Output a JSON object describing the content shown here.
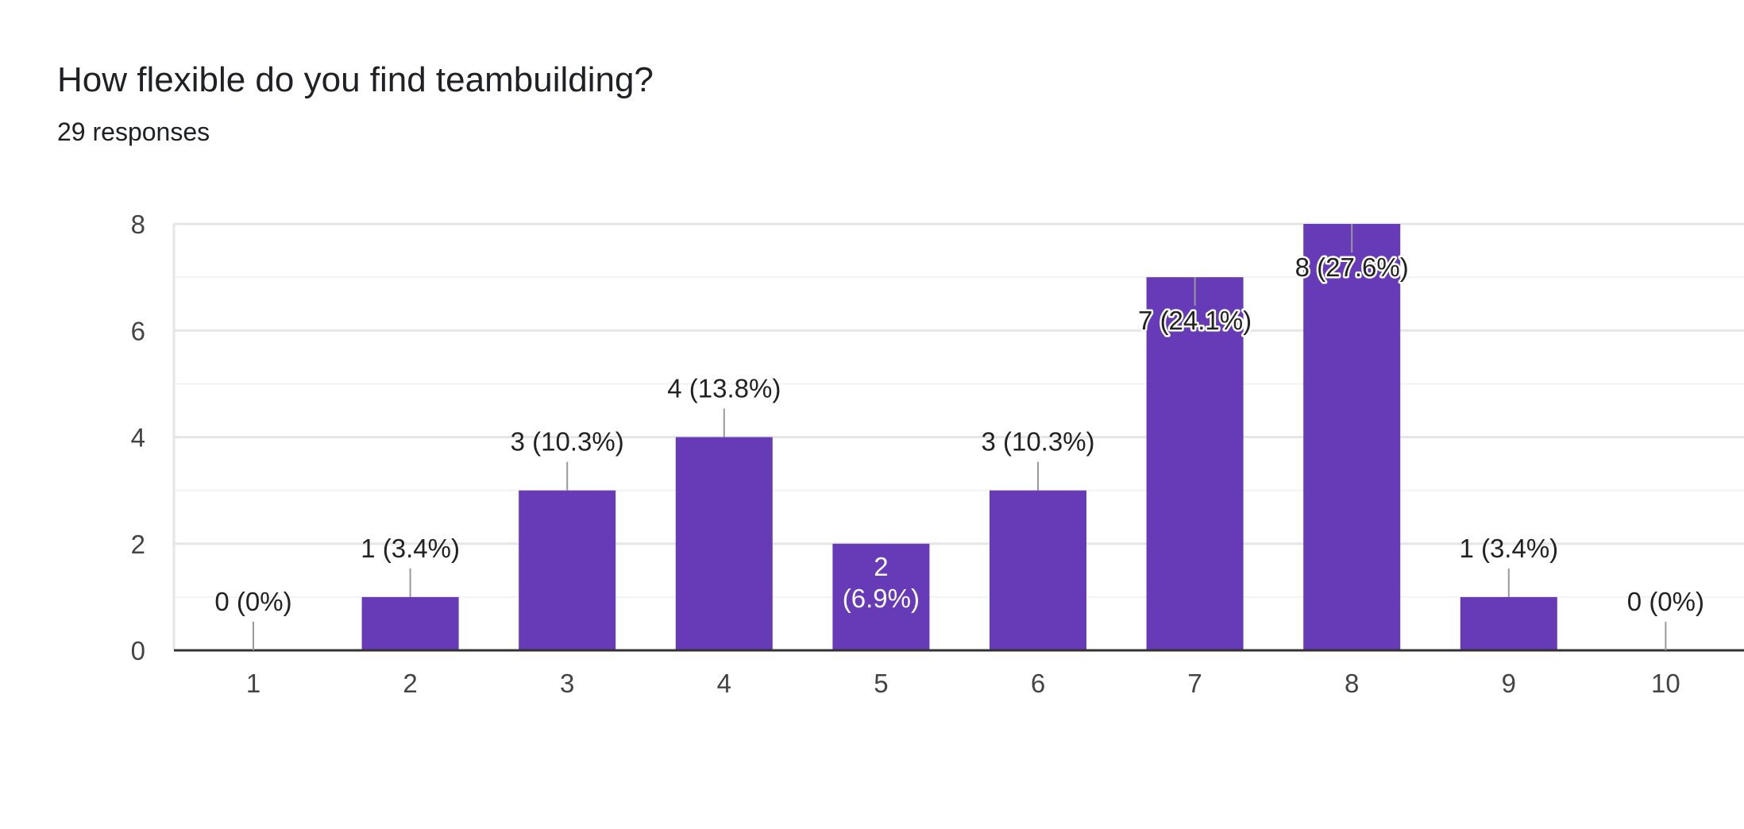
{
  "header": {
    "title": "How flexible do you find teambuilding?",
    "responses": "29 responses"
  },
  "colors": {
    "bar": "#673ab7",
    "grid_major": "#e6e6e6",
    "grid_minor": "#f3f3f3",
    "axis": "#333333",
    "connector": "#999999",
    "label_outside": "#222222",
    "label_inside": "#ffffff"
  },
  "chart_data": {
    "type": "bar",
    "categories": [
      "1",
      "2",
      "3",
      "4",
      "5",
      "6",
      "7",
      "8",
      "9",
      "10"
    ],
    "values": [
      0,
      1,
      3,
      4,
      2,
      3,
      7,
      8,
      1,
      0
    ],
    "data_labels": [
      "0 (0%)",
      "1 (3.4%)",
      "3 (10.3%)",
      "4 (13.8%)",
      "2 (6.9%)",
      "3 (10.3%)",
      "7 (24.1%)",
      "8 (27.6%)",
      "1 (3.4%)",
      "0 (0%)"
    ],
    "yticks": [
      0,
      2,
      4,
      6,
      8
    ],
    "ylim": [
      0,
      8
    ],
    "xlabel": "",
    "ylabel": "",
    "grid": true,
    "legend": "none"
  }
}
